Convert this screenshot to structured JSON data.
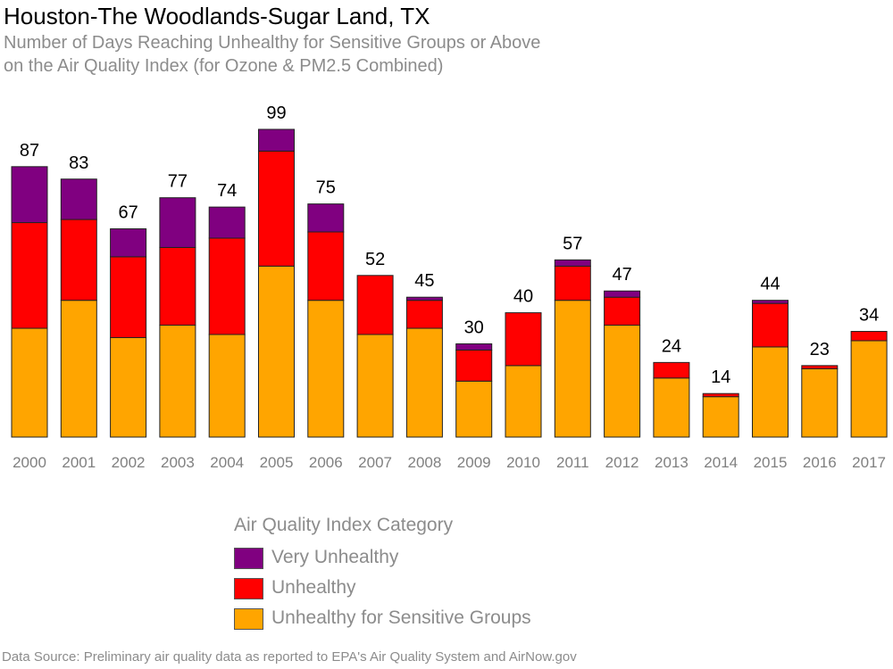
{
  "header": {
    "title": "Houston-The Woodlands-Sugar Land, TX",
    "subtitle_line1": "Number of Days Reaching Unhealthy for Sensitive Groups or Above",
    "subtitle_line2": "on the Air Quality Index (for Ozone & PM2.5 Combined)"
  },
  "legend": {
    "title": "Air Quality Index Category",
    "items": [
      {
        "label": "Very Unhealthy",
        "color": "#800080"
      },
      {
        "label": "Unhealthy",
        "color": "#ff0000"
      },
      {
        "label": "Unhealthy for Sensitive Groups",
        "color": "#ffa500"
      }
    ]
  },
  "footer": {
    "source": "Data Source: Preliminary air quality data as reported to EPA's Air Quality System and AirNow.gov"
  },
  "chart_data": {
    "type": "bar",
    "stacked": true,
    "categories": [
      "2000",
      "2001",
      "2002",
      "2003",
      "2004",
      "2005",
      "2006",
      "2007",
      "2008",
      "2009",
      "2010",
      "2011",
      "2012",
      "2013",
      "2014",
      "2015",
      "2016",
      "2017"
    ],
    "series": [
      {
        "name": "Unhealthy for Sensitive Groups",
        "color": "#ffa500",
        "values": [
          35,
          44,
          32,
          36,
          33,
          55,
          44,
          33,
          35,
          18,
          23,
          44,
          36,
          19,
          13,
          29,
          22,
          31
        ]
      },
      {
        "name": "Unhealthy",
        "color": "#ff0000",
        "values": [
          34,
          26,
          26,
          25,
          31,
          37,
          22,
          19,
          9,
          10,
          17,
          11,
          9,
          5,
          1,
          14,
          1,
          3
        ]
      },
      {
        "name": "Very Unhealthy",
        "color": "#800080",
        "values": [
          18,
          13,
          9,
          16,
          10,
          7,
          9,
          0,
          1,
          2,
          0,
          2,
          2,
          0,
          0,
          1,
          0,
          0
        ]
      }
    ],
    "totals": [
      87,
      83,
      67,
      77,
      74,
      99,
      75,
      52,
      45,
      30,
      40,
      57,
      47,
      24,
      14,
      44,
      23,
      34
    ],
    "ylim": [
      0,
      100
    ],
    "grid": false,
    "legend_position": "bottom"
  }
}
